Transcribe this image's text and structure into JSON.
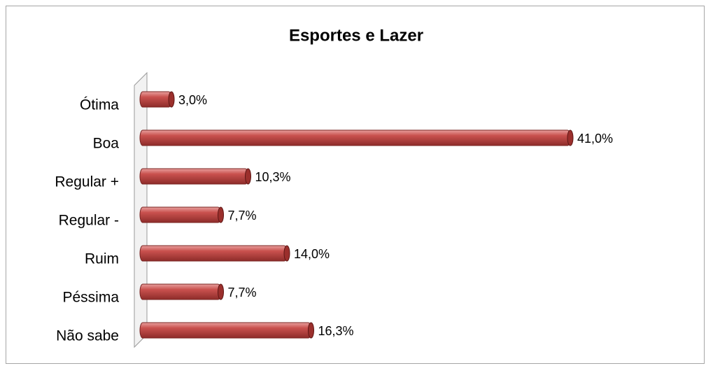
{
  "chart_data": {
    "type": "bar",
    "orientation": "horizontal",
    "title": "Esportes e Lazer",
    "categories": [
      "Ótima",
      "Boa",
      "Regular +",
      "Regular -",
      "Ruim",
      "Péssima",
      "Não sabe"
    ],
    "values": [
      3.0,
      41.0,
      10.3,
      7.7,
      14.0,
      7.7,
      16.3
    ],
    "value_labels": [
      "3,0%",
      "41,0%",
      "10,3%",
      "7,7%",
      "14,0%",
      "7,7%",
      "16,3%"
    ],
    "color": "#c0504d"
  }
}
